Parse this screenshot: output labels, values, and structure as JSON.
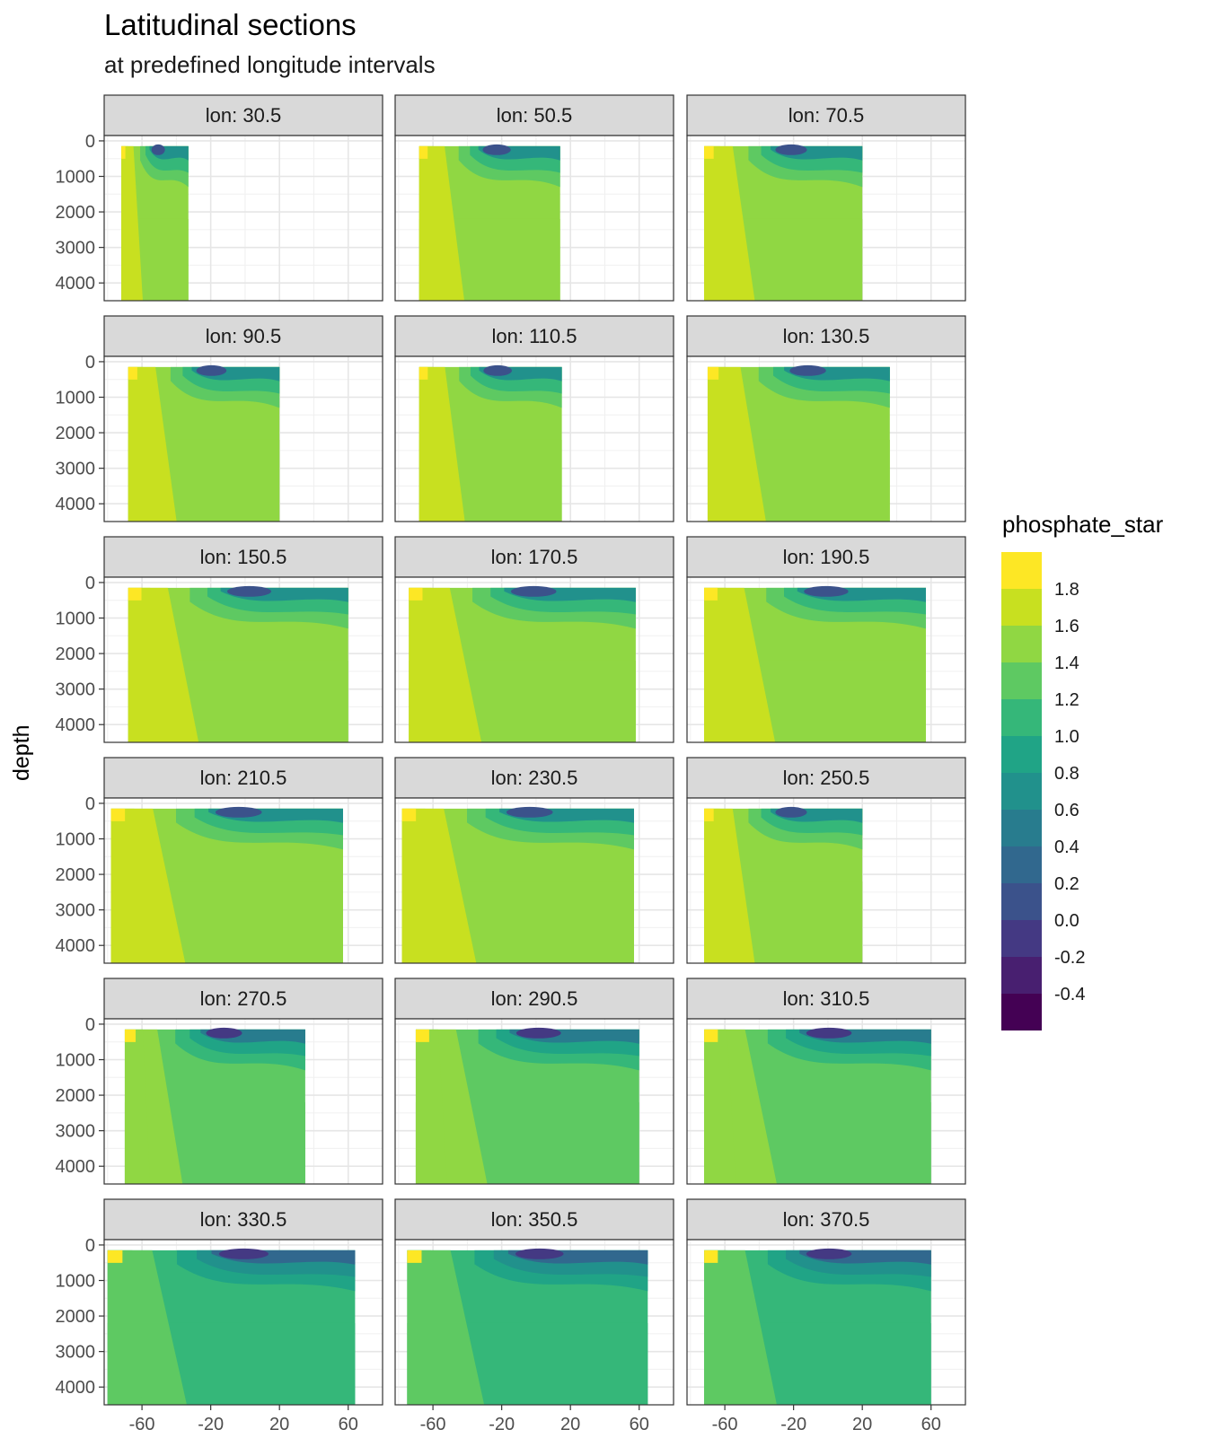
{
  "chart_data": {
    "type": "heatmap",
    "title": "Latitudinal sections",
    "subtitle": "at predefined longitude intervals",
    "xlabel": "",
    "ylabel": "depth",
    "x_ticks": [
      "-60",
      "-20",
      "20",
      "60"
    ],
    "x_tick_values": [
      -60,
      -20,
      20,
      60
    ],
    "xlim": [
      -82,
      80
    ],
    "y_ticks": [
      "0",
      "1000",
      "2000",
      "3000",
      "4000"
    ],
    "y_tick_values": [
      0,
      1000,
      2000,
      3000,
      4000
    ],
    "ylim": [
      4500,
      -150
    ],
    "facets": [
      {
        "label": "lon: 30.5",
        "lat_range": [
          -72,
          -33
        ]
      },
      {
        "label": "lon: 50.5",
        "lat_range": [
          -68,
          14
        ]
      },
      {
        "label": "lon: 70.5",
        "lat_range": [
          -72,
          20
        ]
      },
      {
        "label": "lon: 90.5",
        "lat_range": [
          -68,
          20
        ]
      },
      {
        "label": "lon: 110.5",
        "lat_range": [
          -68,
          15
        ]
      },
      {
        "label": "lon: 130.5",
        "lat_range": [
          -70,
          36
        ]
      },
      {
        "label": "lon: 150.5",
        "lat_range": [
          -68,
          60
        ]
      },
      {
        "label": "lon: 170.5",
        "lat_range": [
          -74,
          58
        ]
      },
      {
        "label": "lon: 190.5",
        "lat_range": [
          -72,
          57
        ]
      },
      {
        "label": "lon: 210.5",
        "lat_range": [
          -78,
          57
        ]
      },
      {
        "label": "lon: 230.5",
        "lat_range": [
          -78,
          57
        ]
      },
      {
        "label": "lon: 250.5",
        "lat_range": [
          -72,
          20
        ]
      },
      {
        "label": "lon: 270.5",
        "lat_range": [
          -70,
          35
        ]
      },
      {
        "label": "lon: 290.5",
        "lat_range": [
          -70,
          60
        ]
      },
      {
        "label": "lon: 310.5",
        "lat_range": [
          -72,
          60
        ]
      },
      {
        "label": "lon: 330.5",
        "lat_range": [
          -80,
          64
        ]
      },
      {
        "label": "lon: 350.5",
        "lat_range": [
          -75,
          65
        ]
      },
      {
        "label": "lon: 370.5",
        "lat_range": [
          -72,
          60
        ]
      }
    ],
    "legend": {
      "title": "phosphate_star",
      "breaks": [
        "1.8",
        "1.6",
        "1.4",
        "1.2",
        "1.0",
        "0.8",
        "0.6",
        "0.4",
        "0.2",
        "0.0",
        "-0.2",
        "-0.4"
      ],
      "colors": [
        "#fde725",
        "#c8e020",
        "#90d743",
        "#5ec962",
        "#35b779",
        "#20a486",
        "#21918c",
        "#287c8e",
        "#31688e",
        "#3b528b",
        "#443983",
        "#481f70",
        "#440154"
      ]
    }
  }
}
